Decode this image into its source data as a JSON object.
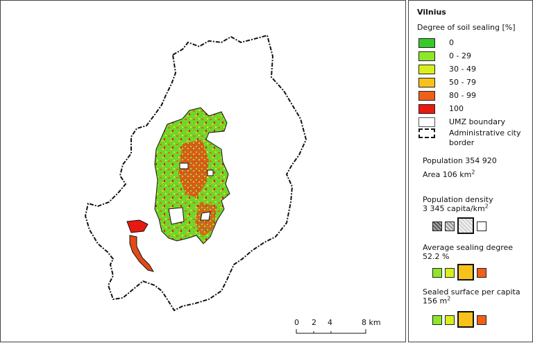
{
  "legend": {
    "title": "Vilnius",
    "subtitle": "Degree of soil sealing [%]",
    "classes": [
      {
        "label": "0",
        "color": "#38c82a"
      },
      {
        "label": "0 - 29",
        "color": "#8ee62a"
      },
      {
        "label": "30 - 49",
        "color": "#d8ef1c"
      },
      {
        "label": "50 - 79",
        "color": "#f7c21a"
      },
      {
        "label": "80 - 99",
        "color": "#f06018"
      },
      {
        "label": "100",
        "color": "#e81a10"
      }
    ],
    "umz_label": "UMZ boundary",
    "admin_label_1": "Administrative city",
    "admin_label_2": "border",
    "population": "Population 354 920",
    "area_prefix": "Area 106 km",
    "area_sup": "2",
    "density_title": "Population density",
    "density_value_prefix": "3 345 capita/km",
    "density_value_sup": "2",
    "sealing_title": "Average sealing degree",
    "sealing_value": "52.2 %",
    "per_capita_title": "Sealed surface per capita",
    "per_capita_value_prefix": "156 m",
    "per_capita_value_sup": "2"
  },
  "scale_bar": {
    "ticks": [
      "0",
      "2",
      "4",
      "8 km"
    ]
  }
}
